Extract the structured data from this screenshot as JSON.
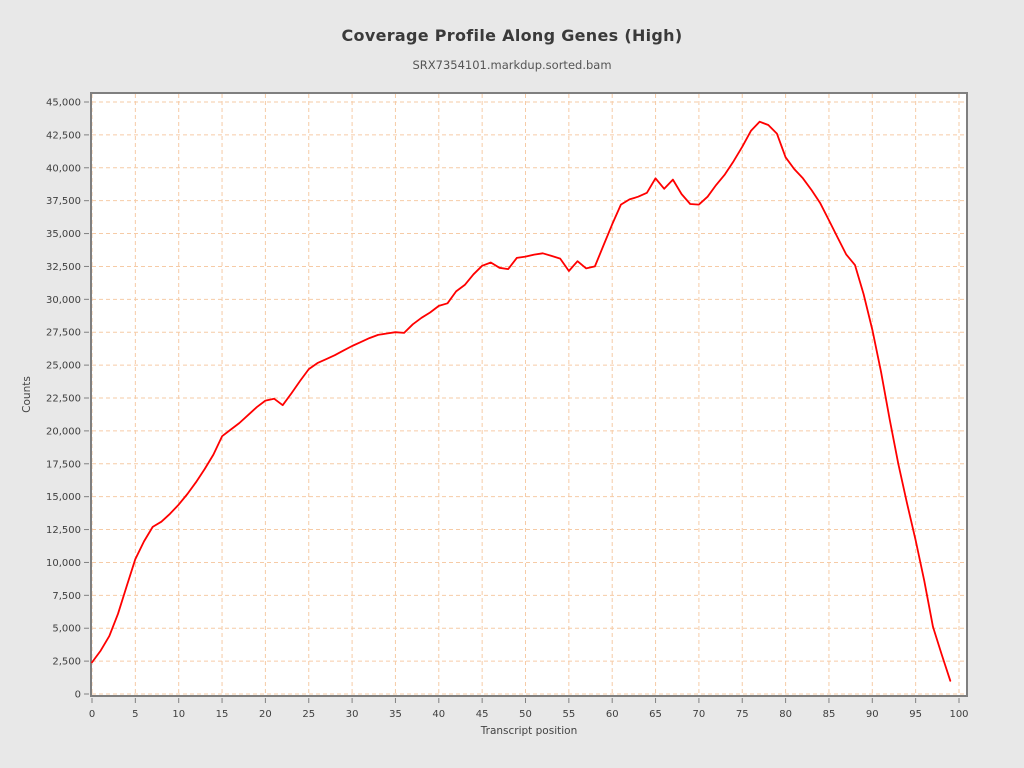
{
  "header": {
    "title": "Coverage Profile Along Genes (High)",
    "subtitle": "SRX7354101.markdup.sorted.bam"
  },
  "colors": {
    "page_background": "#e8e8e8",
    "plot_background": "#ffffff",
    "frame": "#7f7f7f",
    "grid": "#f6cba6",
    "tick": "#808080",
    "tick_label": "#3f3f3f",
    "line": "#ff0000",
    "title": "#3a3a3a",
    "subtitle": "#555555"
  },
  "chart_data": {
    "type": "line",
    "title": "Coverage Profile Along Genes (High)",
    "subtitle": "SRX7354101.markdup.sorted.bam",
    "xlabel": "Transcript position",
    "ylabel": "Counts",
    "xlim": [
      0,
      100
    ],
    "ylim": [
      0,
      45000
    ],
    "x_ticks": [
      0,
      5,
      10,
      15,
      20,
      25,
      30,
      35,
      40,
      45,
      50,
      55,
      60,
      65,
      70,
      75,
      80,
      85,
      90,
      95,
      100
    ],
    "y_ticks": [
      0,
      2500,
      5000,
      7500,
      10000,
      12500,
      15000,
      17500,
      20000,
      22500,
      25000,
      27500,
      30000,
      32500,
      35000,
      37500,
      40000,
      42500,
      45000
    ],
    "grid": true,
    "grid_style": "dashed",
    "legend": "none",
    "series": [
      {
        "name": "coverage",
        "color": "#ff0000",
        "x": [
          0,
          1,
          2,
          3,
          4,
          5,
          6,
          7,
          8,
          9,
          10,
          11,
          12,
          13,
          14,
          15,
          16,
          17,
          18,
          19,
          20,
          21,
          22,
          23,
          24,
          25,
          26,
          27,
          28,
          29,
          30,
          31,
          32,
          33,
          34,
          35,
          36,
          37,
          38,
          39,
          40,
          41,
          42,
          43,
          44,
          45,
          46,
          47,
          48,
          49,
          50,
          51,
          52,
          53,
          54,
          55,
          56,
          57,
          58,
          59,
          60,
          61,
          62,
          63,
          64,
          65,
          66,
          67,
          68,
          69,
          70,
          71,
          72,
          73,
          74,
          75,
          76,
          77,
          78,
          79,
          80,
          81,
          82,
          83,
          84,
          85,
          86,
          87,
          88,
          89,
          90,
          91,
          92,
          93,
          94,
          95,
          96,
          97,
          98,
          99
        ],
        "y": [
          2400,
          3300,
          4400,
          6100,
          8200,
          10250,
          11600,
          12700,
          13100,
          13700,
          14400,
          15200,
          16100,
          17100,
          18200,
          19600,
          20100,
          20600,
          21200,
          21800,
          22300,
          22450,
          21950,
          22850,
          23800,
          24700,
          25150,
          25450,
          25750,
          26100,
          26450,
          26750,
          27050,
          27300,
          27400,
          27500,
          27450,
          28100,
          28600,
          29000,
          29500,
          29700,
          30600,
          31100,
          31900,
          32550,
          32800,
          32400,
          32300,
          33150,
          33250,
          33400,
          33500,
          33300,
          33100,
          32150,
          32900,
          32350,
          32500,
          34100,
          35700,
          37200,
          37600,
          37800,
          38100,
          39200,
          38400,
          39100,
          38000,
          37250,
          37200,
          37800,
          38700,
          39500,
          40500,
          41600,
          42800,
          43500,
          43250,
          42600,
          40800,
          39900,
          39200,
          38300,
          37300,
          36000,
          34700,
          33400,
          32600,
          30400,
          27700,
          24500,
          20900,
          17500,
          14500,
          11700,
          8600,
          5100,
          3000,
          1000
        ]
      }
    ]
  }
}
